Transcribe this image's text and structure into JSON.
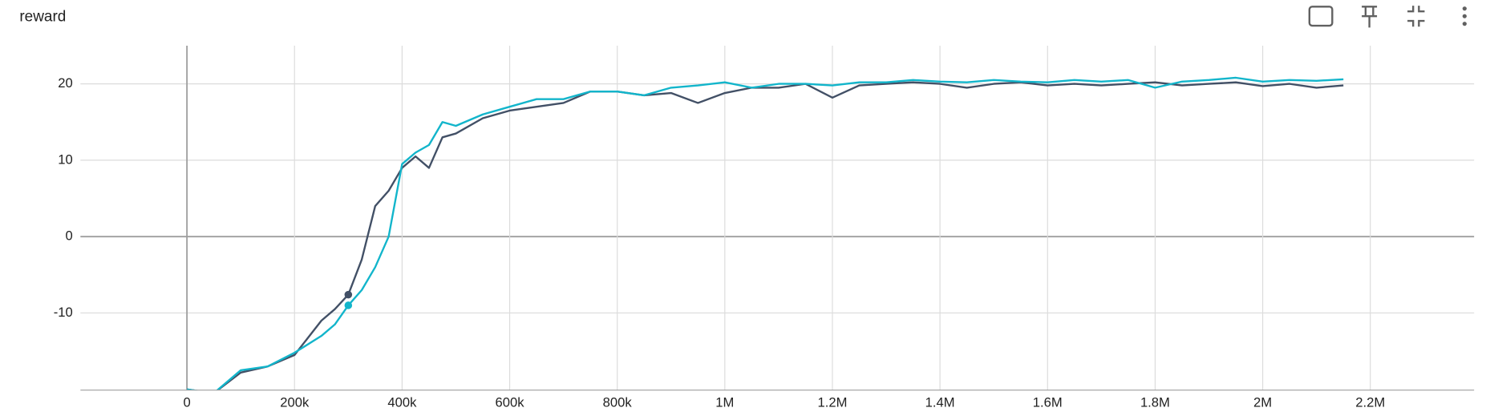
{
  "chart_data": {
    "type": "line",
    "title": "reward",
    "x": [
      0,
      50000,
      100000,
      150000,
      200000,
      250000,
      275000,
      300000,
      325000,
      350000,
      375000,
      400000,
      425000,
      450000,
      475000,
      500000,
      550000,
      600000,
      650000,
      700000,
      750000,
      800000,
      850000,
      900000,
      950000,
      1000000,
      1050000,
      1100000,
      1150000,
      1200000,
      1250000,
      1300000,
      1350000,
      1400000,
      1450000,
      1500000,
      1550000,
      1600000,
      1650000,
      1700000,
      1750000,
      1800000,
      1850000,
      1900000,
      1950000,
      2000000,
      2050000,
      2100000,
      2150000
    ],
    "series": [
      {
        "color": "#425066",
        "values": [
          -20,
          -20.5,
          -17.8,
          -17,
          -15.5,
          -11,
          -9.5,
          -7.6,
          -3,
          4,
          6,
          9,
          10.5,
          9,
          13,
          13.5,
          15.5,
          16.5,
          17,
          17.5,
          19,
          19,
          18.5,
          18.8,
          17.5,
          18.8,
          19.5,
          19.5,
          20,
          18.2,
          19.8,
          20,
          20.2,
          20,
          19.5,
          20,
          20.2,
          19.8,
          20,
          19.8,
          20,
          20.2,
          19.8,
          20,
          20.2,
          19.7,
          20,
          19.5,
          19.8
        ]
      },
      {
        "color": "#12b5cb",
        "values": [
          -20,
          -20.5,
          -17.5,
          -17,
          -15.2,
          -13,
          -11.5,
          -9,
          -7,
          -4,
          0,
          9.5,
          11,
          12,
          15,
          14.5,
          16,
          17,
          18,
          18,
          19,
          19,
          18.5,
          19.5,
          19.8,
          20.2,
          19.5,
          20,
          20,
          19.8,
          20.2,
          20.2,
          20.5,
          20.3,
          20.2,
          20.5,
          20.3,
          20.2,
          20.5,
          20.3,
          20.5,
          19.5,
          20.3,
          20.5,
          20.8,
          20.3,
          20.5,
          20.4,
          20.6
        ]
      }
    ],
    "xlim": [
      -198000,
      2393000
    ],
    "ylim": [
      -20.1,
      25
    ],
    "xticks": [
      0,
      {
        "value": 200000,
        "label": "200k"
      },
      {
        "value": 400000,
        "label": "400k"
      },
      {
        "value": 600000,
        "label": "600k"
      },
      {
        "value": 800000,
        "label": "800k"
      },
      {
        "value": 1000000,
        "label": "1M"
      },
      {
        "value": 1200000,
        "label": "1.2M"
      },
      {
        "value": 1400000,
        "label": "1.4M"
      },
      {
        "value": 1600000,
        "label": "1.6M"
      },
      {
        "value": 1800000,
        "label": "1.8M"
      },
      {
        "value": 2000000,
        "label": "2M"
      },
      {
        "value": 2200000,
        "label": "2.2M"
      }
    ],
    "yticks": [
      -10,
      0,
      10,
      20
    ],
    "grid": true
  }
}
